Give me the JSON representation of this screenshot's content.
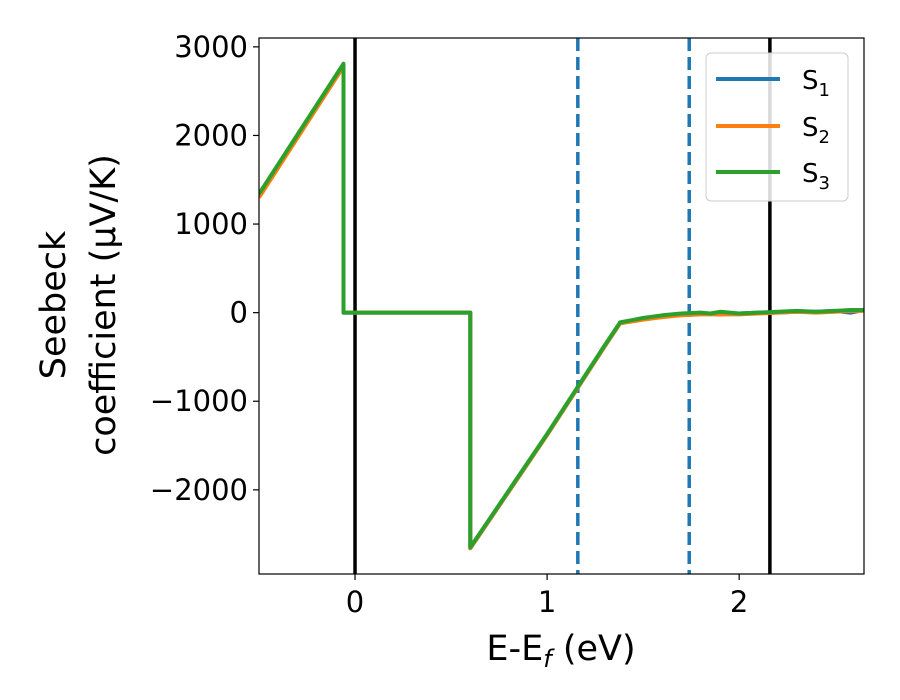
{
  "chart_data": {
    "type": "line",
    "xlabel_main": "E-E",
    "xlabel_sub": "f",
    "xlabel_unit": " (eV)",
    "ylabel_line1": "Seebeck",
    "ylabel_line2": "coefficient  (μV/K)",
    "xlim": [
      -0.5,
      2.65
    ],
    "ylim": [
      -2950,
      3100
    ],
    "xticks": [
      0,
      1,
      2
    ],
    "xtick_labels": [
      "0",
      "1",
      "2"
    ],
    "yticks": [
      3000,
      2000,
      1000,
      0,
      -1000,
      -2000
    ],
    "ytick_labels": [
      "3000",
      "2000",
      "1000",
      "0",
      "−1000",
      "−2000"
    ],
    "grid": false,
    "legend_position": "top-right",
    "series": [
      {
        "name": "S",
        "name_sub": "1",
        "color": "#1f77b4",
        "x": [
          -0.5,
          -0.06,
          -0.06,
          0.6,
          0.6,
          1.0,
          1.3,
          1.38,
          1.5,
          1.6,
          1.7,
          1.8,
          1.9,
          2.0,
          2.1,
          2.2,
          2.3,
          2.4,
          2.5,
          2.58,
          2.65
        ],
        "y": [
          1320,
          2800,
          0,
          0,
          -2660,
          -1380,
          -380,
          -120,
          -70,
          -40,
          -20,
          -10,
          -20,
          -10,
          0,
          0,
          10,
          10,
          20,
          0,
          30
        ]
      },
      {
        "name": "S",
        "name_sub": "2",
        "color": "#ff7f0e",
        "x": [
          -0.5,
          -0.06,
          -0.06,
          0.6,
          0.6,
          1.0,
          1.3,
          1.38,
          1.5,
          1.6,
          1.7,
          1.8,
          1.9,
          2.0,
          2.1,
          2.2,
          2.3,
          2.4,
          2.5,
          2.58,
          2.65
        ],
        "y": [
          1300,
          2780,
          0,
          0,
          -2660,
          -1380,
          -380,
          -120,
          -80,
          -50,
          -30,
          -20,
          -20,
          -20,
          -10,
          0,
          10,
          0,
          10,
          20,
          20
        ]
      },
      {
        "name": "S",
        "name_sub": "3",
        "color": "#2ca02c",
        "x": [
          -0.5,
          -0.06,
          -0.06,
          0.6,
          0.6,
          1.0,
          1.3,
          1.38,
          1.5,
          1.6,
          1.7,
          1.8,
          1.85,
          1.9,
          2.0,
          2.1,
          2.2,
          2.3,
          2.4,
          2.5,
          2.58,
          2.65
        ],
        "y": [
          1340,
          2810,
          0,
          0,
          -2650,
          -1370,
          -370,
          -110,
          -60,
          -30,
          -10,
          0,
          -10,
          10,
          -10,
          0,
          10,
          20,
          10,
          20,
          30,
          30
        ]
      }
    ],
    "vlines": [
      {
        "x": 0.0,
        "color": "#000000",
        "style": "solid"
      },
      {
        "x": 1.16,
        "color": "#1f77b4",
        "style": "dashed"
      },
      {
        "x": 1.74,
        "color": "#1f77b4",
        "style": "dashed"
      },
      {
        "x": 2.16,
        "color": "#000000",
        "style": "solid"
      }
    ]
  }
}
